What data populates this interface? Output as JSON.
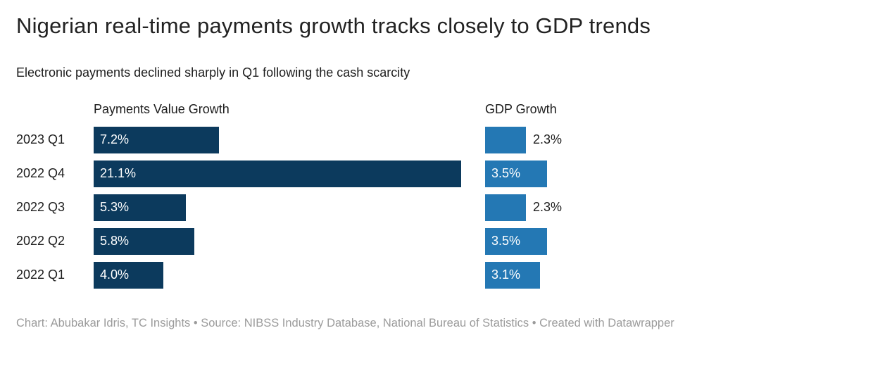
{
  "title": "Nigerian real-time payments growth tracks closely to GDP trends",
  "subtitle": "Electronic payments declined sharply in Q1 following the cash scarcity",
  "footer": "Chart: Abubakar Idris, TC Insights • Source: NIBSS Industry Database, National Bureau of Statistics • Created with Datawrapper",
  "colors": {
    "payments_bar": "#0c3a5d",
    "gdp_bar": "#2478b4",
    "title_text": "#222222",
    "footer_text": "#9b9b9b",
    "inside_label": "#ffffff"
  },
  "chart_data": {
    "type": "bar",
    "orientation": "horizontal",
    "categories": [
      "2023 Q1",
      "2022 Q4",
      "2022 Q3",
      "2022 Q2",
      "2022 Q1"
    ],
    "series": [
      {
        "name": "Payments Value Growth",
        "values": [
          7.2,
          21.1,
          5.3,
          5.8,
          4.0
        ],
        "labels": [
          "7.2%",
          "21.1%",
          "5.3%",
          "5.8%",
          "4.0%"
        ],
        "color": "#0c3a5d",
        "axis_max": 21.1
      },
      {
        "name": "GDP Growth",
        "values": [
          2.3,
          3.5,
          2.3,
          3.5,
          3.1
        ],
        "labels": [
          "2.3%",
          "3.5%",
          "2.3%",
          "3.5%",
          "3.1%"
        ],
        "color": "#2478b4",
        "axis_max": 3.5
      }
    ],
    "title": "Nigerian real-time payments growth tracks closely to GDP trends",
    "xlabel": "",
    "ylabel": "",
    "grid": false,
    "legend_position": "column-headers",
    "value_label_placement": "inside-bar, outside when bar too short"
  }
}
